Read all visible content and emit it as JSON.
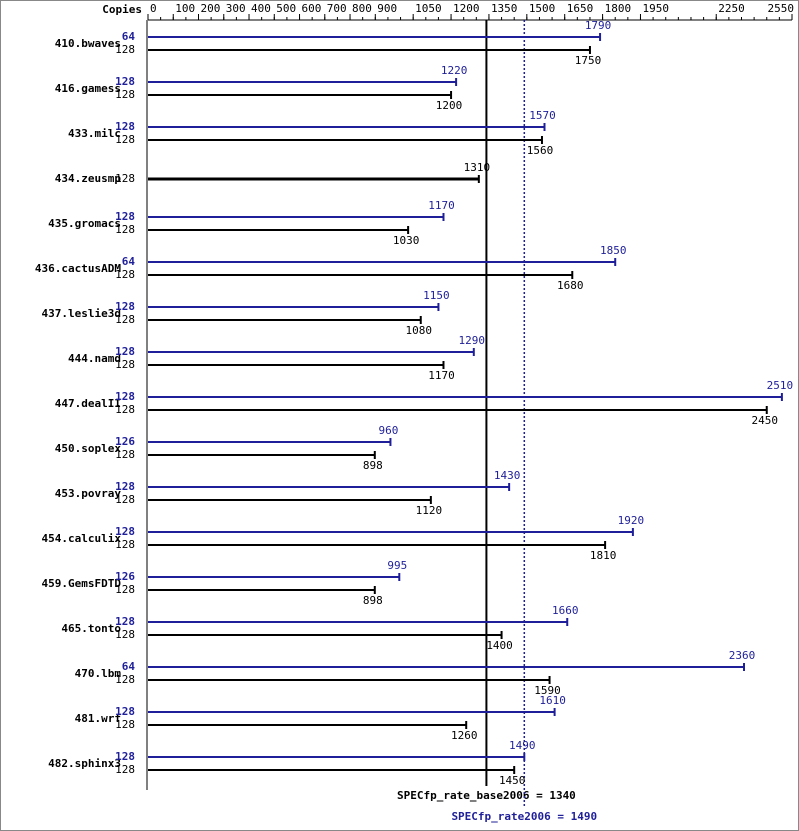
{
  "chart_data": {
    "type": "bar",
    "orientation": "horizontal",
    "copies_label": "Copies",
    "categories": [
      "410.bwaves",
      "416.gamess",
      "433.milc",
      "434.zeusmp",
      "435.gromacs",
      "436.cactusADM",
      "437.leslie3d",
      "444.namd",
      "447.dealII",
      "450.soplex",
      "453.povray",
      "454.calculix",
      "459.GemsFDTD",
      "465.tonto",
      "470.lbm",
      "481.wrf",
      "482.sphinx3"
    ],
    "series": [
      {
        "color": "#1f1f9a",
        "copies": [
          64,
          128,
          128,
          null,
          128,
          64,
          128,
          128,
          128,
          126,
          128,
          128,
          126,
          128,
          64,
          128,
          128
        ],
        "values": [
          1790,
          1220,
          1570,
          null,
          1170,
          1850,
          1150,
          1290,
          2510,
          960,
          1430,
          1920,
          995,
          1660,
          2360,
          1610,
          1490
        ]
      },
      {
        "color": "#000000",
        "copies": [
          128,
          128,
          128,
          128,
          128,
          128,
          128,
          128,
          128,
          128,
          128,
          128,
          128,
          128,
          128,
          128,
          128
        ],
        "values": [
          1750,
          1200,
          1560,
          1310,
          1030,
          1680,
          1080,
          1170,
          2450,
          898,
          1120,
          1810,
          898,
          1400,
          1590,
          1260,
          1450
        ]
      }
    ],
    "xlim": [
      0,
      2550
    ],
    "xticks": [
      0,
      100,
      200,
      300,
      400,
      500,
      600,
      700,
      800,
      900,
      1050,
      1200,
      1350,
      1500,
      1650,
      1800,
      1950,
      2250,
      2550
    ],
    "reference_lines": [
      {
        "value": 1340,
        "label": "SPECfp_rate_base2006 = 1340",
        "color": "#000000",
        "style": "solid"
      },
      {
        "value": 1490,
        "label": "SPECfp_rate2006 = 1490",
        "color": "#1f1f9a",
        "style": "dotted"
      }
    ]
  }
}
